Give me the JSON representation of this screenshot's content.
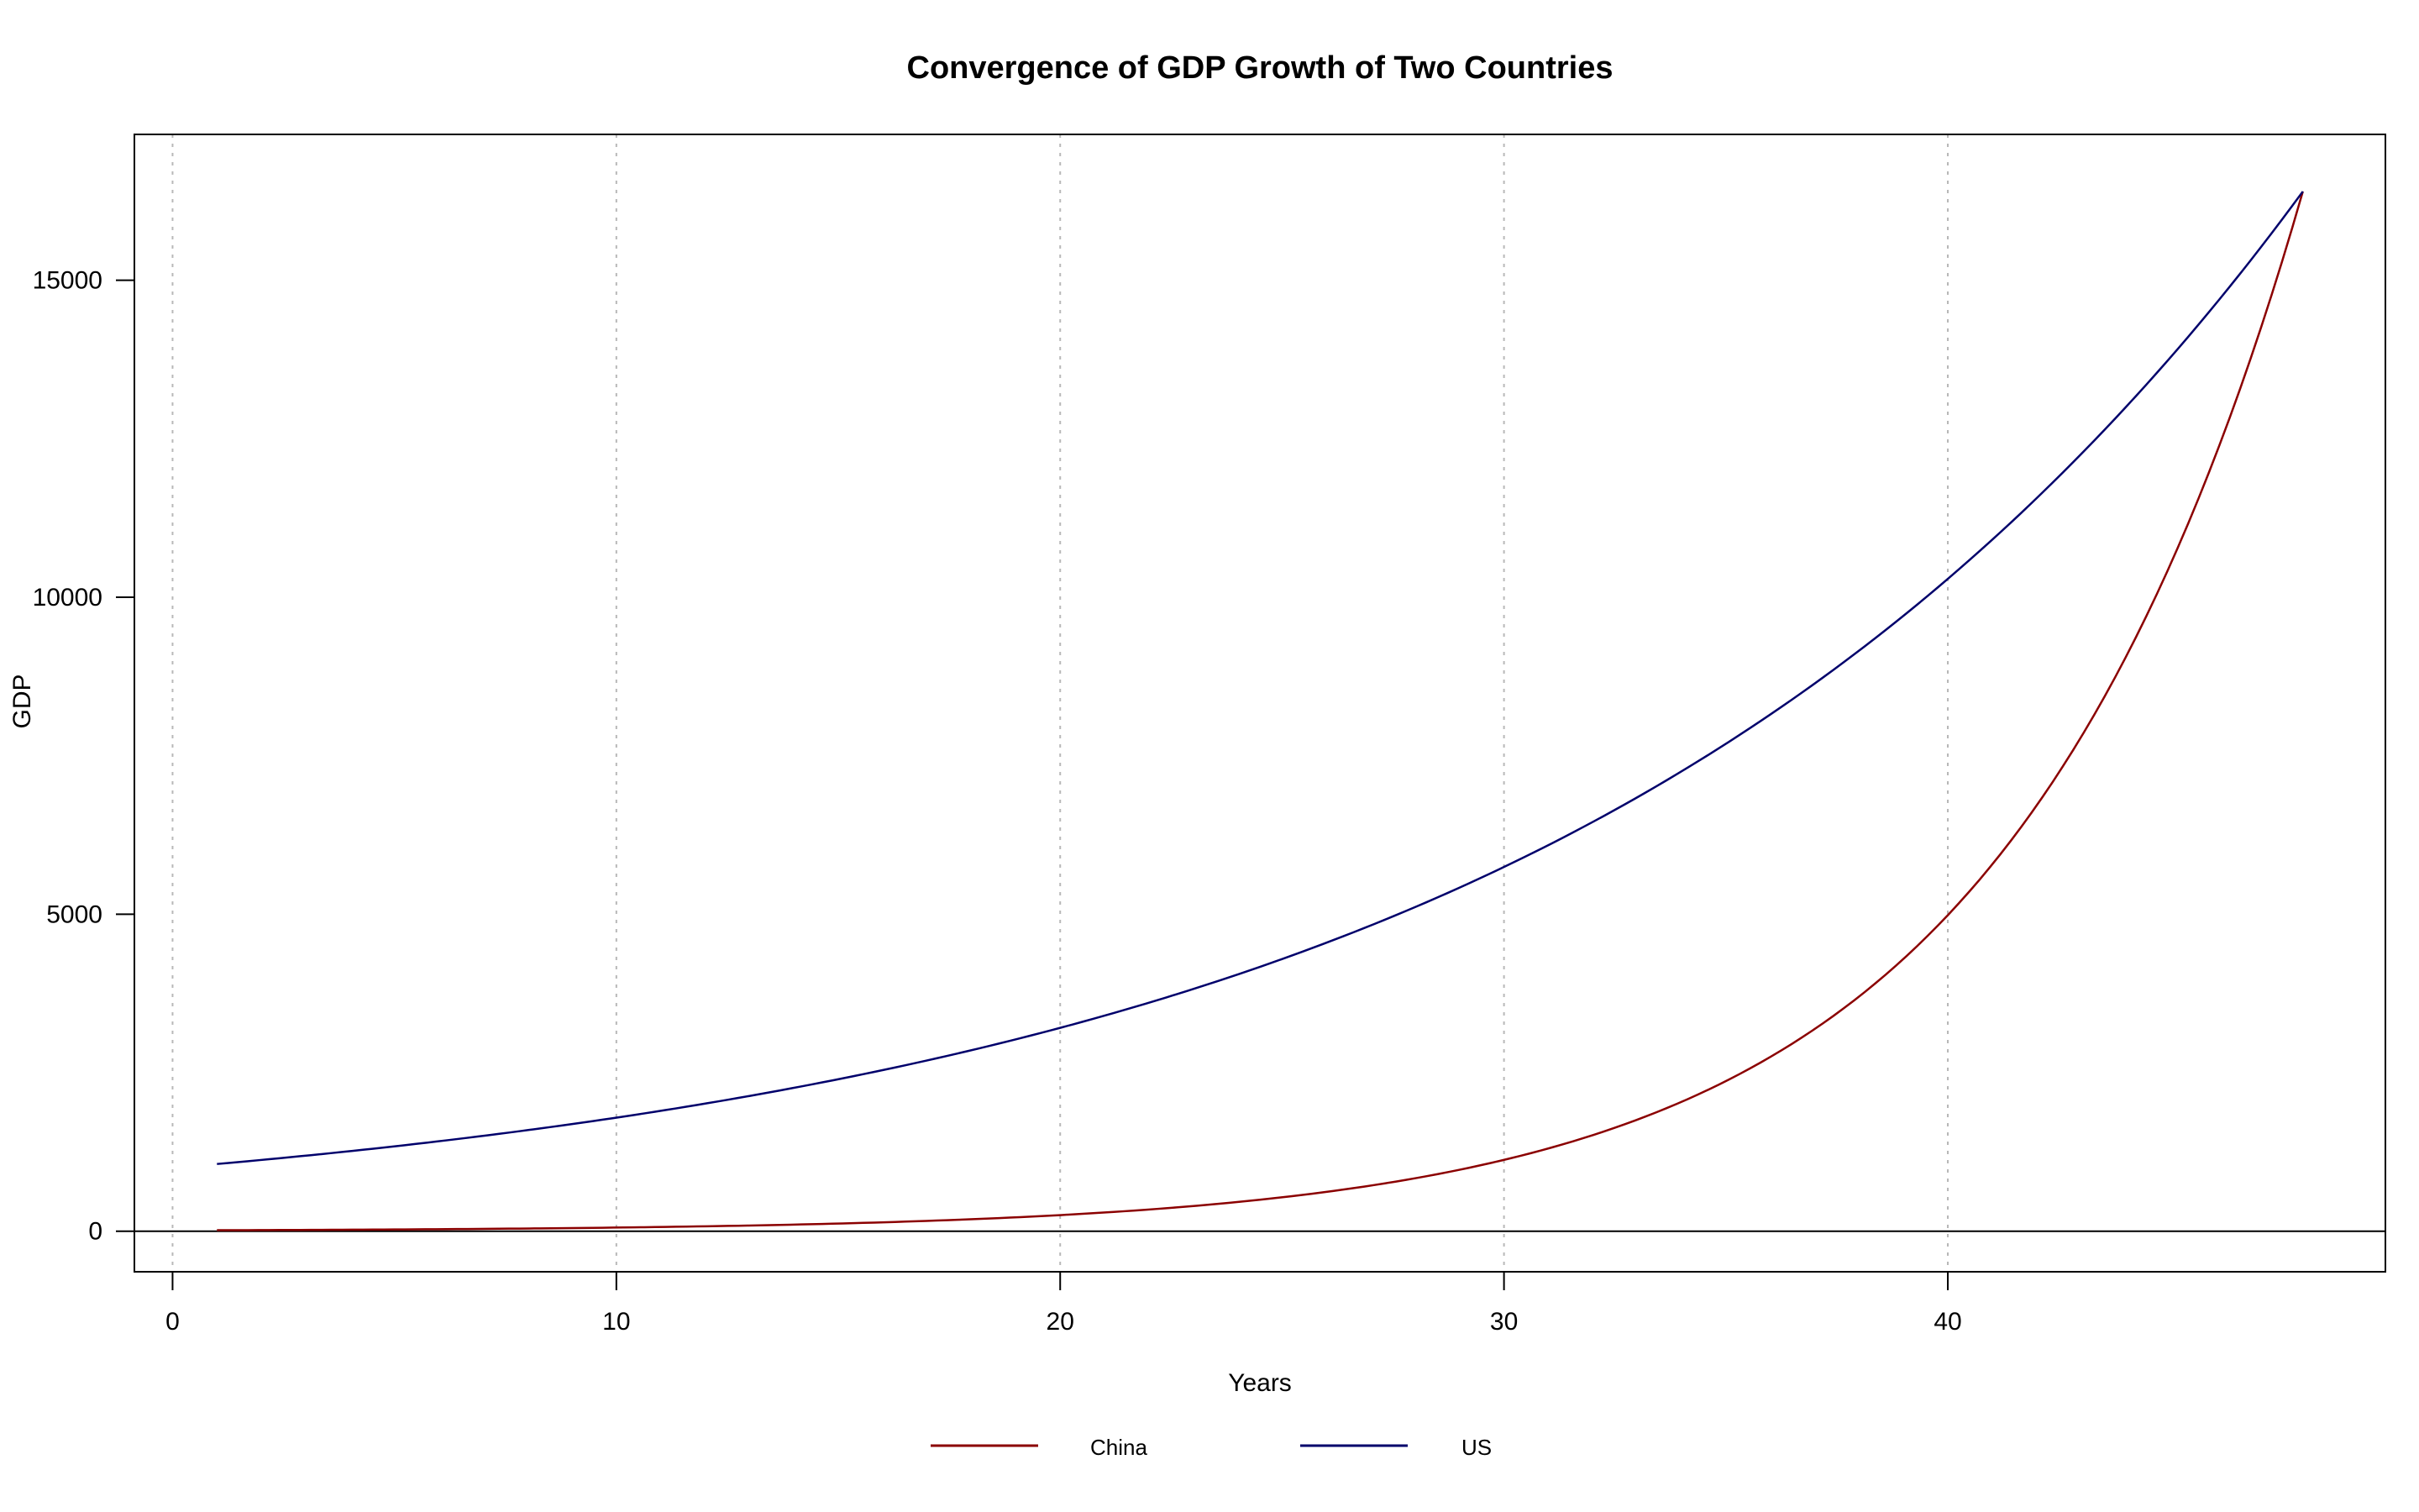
{
  "chart_data": {
    "type": "line",
    "title": "Convergence of GDP Growth of Two Countries",
    "xlabel": "Years",
    "ylabel": "GDP",
    "xlim": [
      -0.86,
      49.86
    ],
    "ylim": [
      -640,
      17300
    ],
    "xticks": [
      0,
      10,
      20,
      30,
      40
    ],
    "yticks": [
      0,
      5000,
      10000,
      15000
    ],
    "grid": {
      "vertical_dotted": true,
      "horizontal_zero_line": true
    },
    "legend_position": "bottom-center",
    "x": [
      1,
      48
    ],
    "series": [
      {
        "name": "China",
        "color": "#8b0000",
        "start": 15,
        "end": 16400,
        "x_start": 1,
        "x_end": 48
      },
      {
        "name": "US",
        "color": "#00006b",
        "start": 1060,
        "end": 16400,
        "x_start": 1,
        "x_end": 48
      }
    ]
  }
}
